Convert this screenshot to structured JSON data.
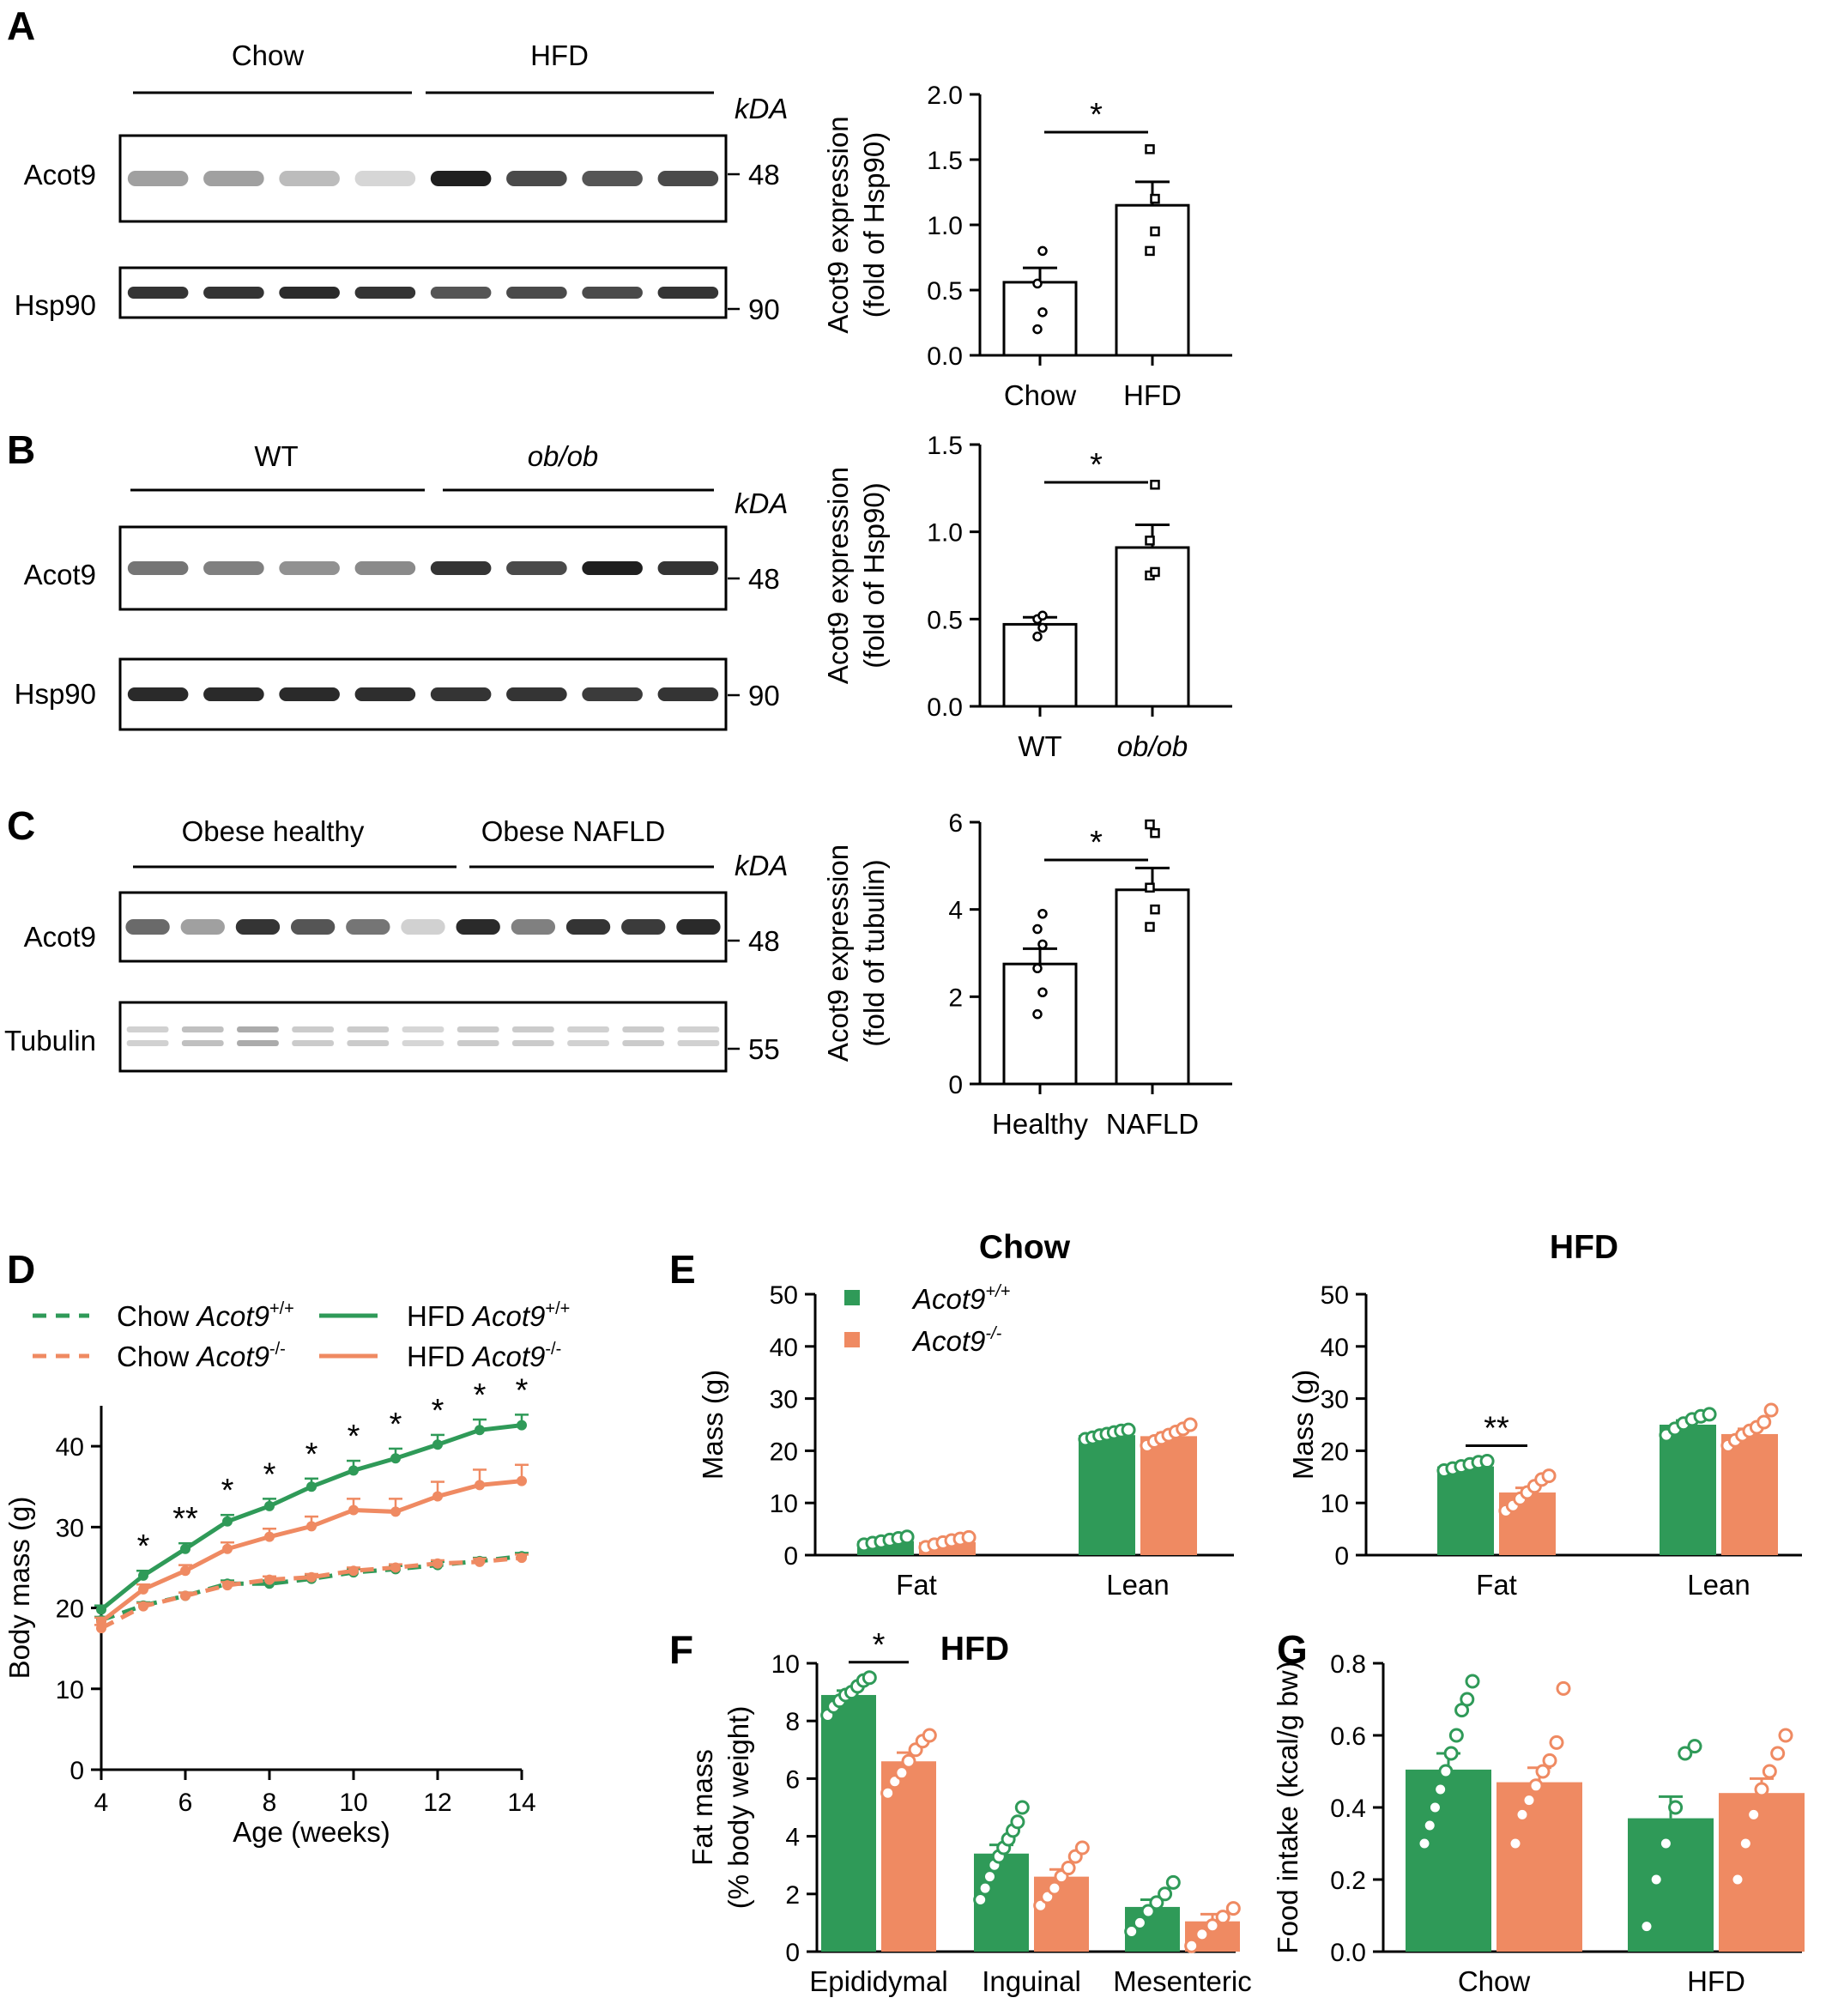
{
  "colors": {
    "wt": "#2f9a58",
    "ko": "#ef8a62",
    "black": "#000000",
    "bar_fill": "#ffffff"
  },
  "panel_labels": [
    "A",
    "B",
    "C",
    "D",
    "E",
    "F",
    "G"
  ],
  "blots": {
    "A": {
      "groups": [
        {
          "label": "Chow",
          "lanes": 4,
          "italic": false
        },
        {
          "label": "HFD",
          "lanes": 4,
          "italic": false
        }
      ],
      "kda_label": "kDA",
      "rows": [
        {
          "label": "Acot9",
          "kda": "48",
          "intensity": [
            0.35,
            0.35,
            0.22,
            0.1,
            0.95,
            0.75,
            0.7,
            0.75
          ]
        },
        {
          "label": "Hsp90",
          "kda": "90",
          "intensity": [
            0.85,
            0.85,
            0.9,
            0.85,
            0.7,
            0.75,
            0.75,
            0.85
          ]
        }
      ]
    },
    "B": {
      "groups": [
        {
          "label": "WT",
          "lanes": 4,
          "italic": false
        },
        {
          "label": "ob/ob",
          "lanes": 4,
          "italic": true
        }
      ],
      "kda_label": "kDA",
      "rows": [
        {
          "label": "Acot9",
          "kda": "48",
          "intensity": [
            0.55,
            0.5,
            0.42,
            0.45,
            0.85,
            0.75,
            0.95,
            0.85
          ]
        },
        {
          "label": "Hsp90",
          "kda": "90",
          "intensity": [
            0.9,
            0.9,
            0.9,
            0.88,
            0.85,
            0.85,
            0.82,
            0.85
          ]
        }
      ]
    },
    "C": {
      "groups": [
        {
          "label": "Obese healthy",
          "lanes": 6,
          "italic": false
        },
        {
          "label": "Obese NAFLD",
          "lanes": 5,
          "italic": false
        }
      ],
      "kda_label": "kDA",
      "rows": [
        {
          "label": "Acot9",
          "kda": "48",
          "intensity": [
            0.6,
            0.35,
            0.85,
            0.7,
            0.55,
            0.12,
            0.9,
            0.5,
            0.85,
            0.82,
            0.9
          ]
        },
        {
          "label": "Tubulin",
          "kda": "55",
          "intensity": [
            0.12,
            0.2,
            0.3,
            0.15,
            0.15,
            0.1,
            0.15,
            0.15,
            0.12,
            0.15,
            0.12
          ]
        }
      ]
    }
  },
  "chart_data": [
    {
      "id": "A",
      "type": "bar",
      "categories": [
        "Chow",
        "HFD"
      ],
      "italic_categories": [
        false,
        false
      ],
      "values": [
        0.56,
        1.15
      ],
      "sem": [
        0.11,
        0.18
      ],
      "points": [
        [
          0.2,
          0.33,
          0.55,
          0.8
        ],
        [
          0.8,
          0.95,
          1.58,
          1.2
        ]
      ],
      "point_shapes": [
        "circle",
        "square"
      ],
      "ylabel": [
        "Acot9 expression",
        "(fold of Hsp90)"
      ],
      "ylim": [
        0,
        2.0
      ],
      "yticks": [
        0,
        0.5,
        1.0,
        1.5,
        2.0
      ],
      "ytick_labels": [
        "0.0",
        "0.5",
        "1.0",
        "1.5",
        "2.0"
      ],
      "significance": [
        {
          "between": [
            0,
            1
          ],
          "label": "*"
        }
      ]
    },
    {
      "id": "B",
      "type": "bar",
      "categories": [
        "WT",
        "ob/ob"
      ],
      "italic_categories": [
        false,
        true
      ],
      "values": [
        0.47,
        0.91
      ],
      "sem": [
        0.04,
        0.13
      ],
      "points": [
        [
          0.4,
          0.45,
          0.5,
          0.52
        ],
        [
          0.75,
          0.77,
          0.95,
          1.27
        ]
      ],
      "point_shapes": [
        "circle",
        "square"
      ],
      "ylabel": [
        "Acot9 expression",
        "(fold of Hsp90)"
      ],
      "ylim": [
        0,
        1.5
      ],
      "yticks": [
        0,
        0.5,
        1.0,
        1.5
      ],
      "ytick_labels": [
        "0.0",
        "0.5",
        "1.0",
        "1.5"
      ],
      "significance": [
        {
          "between": [
            0,
            1
          ],
          "label": "*"
        }
      ]
    },
    {
      "id": "C",
      "type": "bar",
      "categories": [
        "Healthy",
        "NAFLD"
      ],
      "italic_categories": [
        false,
        false
      ],
      "values": [
        2.75,
        4.45
      ],
      "sem": [
        0.35,
        0.5
      ],
      "points": [
        [
          1.6,
          2.1,
          2.65,
          3.2,
          3.55,
          3.9
        ],
        [
          3.6,
          4.0,
          4.5,
          5.75,
          5.95
        ]
      ],
      "point_shapes": [
        "circle",
        "square"
      ],
      "ylabel": [
        "Acot9 expression",
        "(fold of tubulin)"
      ],
      "ylim": [
        0,
        6
      ],
      "yticks": [
        0,
        2,
        4,
        6
      ],
      "ytick_labels": [
        "0",
        "2",
        "4",
        "6"
      ],
      "significance": [
        {
          "between": [
            0,
            1
          ],
          "label": "*"
        }
      ]
    },
    {
      "id": "D",
      "type": "line",
      "x": [
        4,
        5,
        6,
        7,
        8,
        9,
        10,
        11,
        12,
        13,
        14
      ],
      "series": [
        {
          "name_prefix": "Chow",
          "name_italic": "Acot9",
          "name_sup": "+/+",
          "color": "wt",
          "dashed": true,
          "values": [
            18.5,
            20.3,
            21.5,
            23.0,
            23.0,
            23.6,
            24.4,
            24.8,
            25.3,
            25.8,
            26.4
          ],
          "sem": [
            0.4,
            0.4,
            0.4,
            0.4,
            0.4,
            0.4,
            0.4,
            0.4,
            0.4,
            0.4,
            0.4
          ]
        },
        {
          "name_prefix": "Chow",
          "name_italic": "Acot9",
          "name_sup": "-/-",
          "color": "ko",
          "dashed": true,
          "values": [
            17.5,
            20.2,
            21.5,
            22.8,
            23.5,
            23.8,
            24.6,
            25.0,
            25.5,
            25.7,
            26.2
          ],
          "sem": [
            0.4,
            0.4,
            0.4,
            0.4,
            0.4,
            0.4,
            0.4,
            0.4,
            0.4,
            0.4,
            0.4
          ]
        },
        {
          "name_prefix": "HFD",
          "name_italic": "Acot9",
          "name_sup": "+/+",
          "color": "wt",
          "dashed": false,
          "values": [
            19.8,
            24.0,
            27.3,
            30.7,
            32.6,
            35.0,
            37.0,
            38.5,
            40.2,
            42.0,
            42.6
          ],
          "sem": [
            0.5,
            0.6,
            0.7,
            0.8,
            0.9,
            1.0,
            1.2,
            1.2,
            1.2,
            1.3,
            1.3
          ]
        },
        {
          "name_prefix": "HFD",
          "name_italic": "Acot9",
          "name_sup": "-/-",
          "color": "ko",
          "dashed": false,
          "values": [
            18.3,
            22.3,
            24.6,
            27.3,
            28.8,
            30.1,
            32.1,
            31.9,
            33.8,
            35.2,
            35.7
          ],
          "sem": [
            0.5,
            0.6,
            0.7,
            0.8,
            1.0,
            1.2,
            1.4,
            1.6,
            1.8,
            1.9,
            2.0
          ]
        }
      ],
      "significance_x": [
        5,
        6,
        7,
        8,
        9,
        10,
        11,
        12,
        13,
        14
      ],
      "significance_labels": [
        "*",
        "**",
        "*",
        "*",
        "*",
        "*",
        "*",
        "*",
        "*",
        "*"
      ],
      "xlabel": "Age (weeks)",
      "ylabel": "Body mass (g)",
      "xlim": [
        4,
        14
      ],
      "xticks": [
        4,
        6,
        8,
        10,
        12,
        14
      ],
      "ylim": [
        0,
        45
      ],
      "yticks": [
        0,
        10,
        20,
        30,
        40
      ]
    },
    {
      "id": "E-chow",
      "type": "bar",
      "title": "Chow",
      "categories": [
        "Fat",
        "Lean"
      ],
      "series": [
        {
          "name": "Acot9",
          "name_sup": "+/+",
          "color": "wt",
          "values": [
            2.7,
            23.0
          ],
          "sem": [
            0.3,
            0.4
          ],
          "points": [
            [
              2.0,
              2.3,
              2.6,
              2.9,
              3.2,
              3.5
            ],
            [
              22.2,
              22.5,
              22.9,
              23.2,
              23.5,
              23.8,
              24.0
            ]
          ]
        },
        {
          "name": "Acot9",
          "name_sup": "-/-",
          "color": "ko",
          "values": [
            2.5,
            22.8
          ],
          "sem": [
            0.3,
            0.6
          ],
          "points": [
            [
              1.5,
              2.0,
              2.4,
              2.8,
              3.1,
              3.4
            ],
            [
              21.0,
              21.8,
              22.4,
              23.0,
              23.6,
              24.2,
              25.0
            ]
          ]
        }
      ],
      "ylabel": "Mass (g)",
      "ylim": [
        0,
        50
      ],
      "yticks": [
        0,
        10,
        20,
        30,
        40,
        50
      ],
      "significance": []
    },
    {
      "id": "E-hfd",
      "type": "bar",
      "title": "HFD",
      "categories": [
        "Fat",
        "Lean"
      ],
      "series": [
        {
          "name": "Acot9",
          "name_sup": "+/+",
          "color": "wt",
          "values": [
            17.0,
            25.0
          ],
          "sem": [
            0.4,
            0.8
          ],
          "points": [
            [
              16.2,
              16.6,
              17.0,
              17.4,
              17.8,
              18.0
            ],
            [
              23.0,
              24.2,
              25.2,
              26.0,
              26.6,
              27.0
            ]
          ]
        },
        {
          "name": "Acot9",
          "name_sup": "-/-",
          "color": "ko",
          "values": [
            12.0,
            23.2
          ],
          "sem": [
            0.9,
            1.0
          ],
          "points": [
            [
              8.5,
              9.5,
              10.8,
              12.0,
              13.2,
              14.5,
              15.2
            ],
            [
              21.0,
              22.0,
              23.0,
              23.8,
              24.5,
              25.5,
              27.8
            ]
          ]
        }
      ],
      "ylabel": "Mass (g)",
      "ylim": [
        0,
        50
      ],
      "yticks": [
        0,
        10,
        20,
        30,
        40,
        50
      ],
      "significance": [
        {
          "category": 0,
          "label": "**"
        }
      ]
    },
    {
      "id": "F",
      "type": "bar",
      "title": "HFD",
      "categories": [
        "Epididymal",
        "Inguinal",
        "Mesenteric"
      ],
      "series": [
        {
          "name": "Acot9",
          "name_sup": "+/+",
          "color": "wt",
          "values": [
            8.9,
            3.4,
            1.55
          ],
          "sem": [
            0.15,
            0.3,
            0.25
          ],
          "points": [
            [
              8.2,
              8.5,
              8.7,
              8.9,
              9.0,
              9.2,
              9.4,
              9.5
            ],
            [
              1.8,
              2.2,
              2.6,
              3.0,
              3.3,
              3.6,
              3.9,
              4.2,
              4.5,
              5.0
            ],
            [
              0.7,
              1.0,
              1.4,
              1.7,
              2.0,
              2.4
            ]
          ]
        },
        {
          "name": "Acot9",
          "name_sup": "-/-",
          "color": "ko",
          "values": [
            6.6,
            2.6,
            1.05
          ],
          "sem": [
            0.3,
            0.25,
            0.25
          ],
          "points": [
            [
              5.5,
              5.9,
              6.2,
              6.6,
              7.0,
              7.3,
              7.5
            ],
            [
              1.6,
              1.9,
              2.2,
              2.6,
              2.9,
              3.3,
              3.6
            ],
            [
              0.2,
              0.6,
              0.9,
              1.2,
              1.5
            ]
          ]
        }
      ],
      "ylabel": [
        "Fat mass",
        "(% body weight)"
      ],
      "ylim": [
        0,
        10
      ],
      "yticks": [
        0,
        2,
        4,
        6,
        8,
        10
      ],
      "significance": [
        {
          "category": 0,
          "label": "*"
        }
      ]
    },
    {
      "id": "G",
      "type": "bar",
      "categories": [
        "Chow",
        "HFD"
      ],
      "series": [
        {
          "name": "Acot9",
          "name_sup": "+/+",
          "color": "wt",
          "values": [
            0.505,
            0.37
          ],
          "sem": [
            0.045,
            0.06
          ],
          "points": [
            [
              0.3,
              0.35,
              0.4,
              0.45,
              0.5,
              0.55,
              0.6,
              0.67,
              0.7,
              0.75
            ],
            [
              0.07,
              0.2,
              0.3,
              0.4,
              0.55,
              0.57
            ]
          ]
        },
        {
          "name": "Acot9",
          "name_sup": "-/-",
          "color": "ko",
          "values": [
            0.47,
            0.44
          ],
          "sem": [
            0.04,
            0.04
          ],
          "points": [
            [
              0.3,
              0.38,
              0.42,
              0.46,
              0.5,
              0.53,
              0.58,
              0.73
            ],
            [
              0.2,
              0.3,
              0.38,
              0.45,
              0.5,
              0.55,
              0.6
            ]
          ]
        }
      ],
      "ylabel": "Food intake (kcal/g bw)",
      "ylim": [
        0,
        0.8
      ],
      "yticks": [
        0,
        0.2,
        0.4,
        0.6,
        0.8
      ],
      "ytick_labels": [
        "0.0",
        "0.2",
        "0.4",
        "0.6",
        "0.8"
      ],
      "significance": []
    }
  ]
}
